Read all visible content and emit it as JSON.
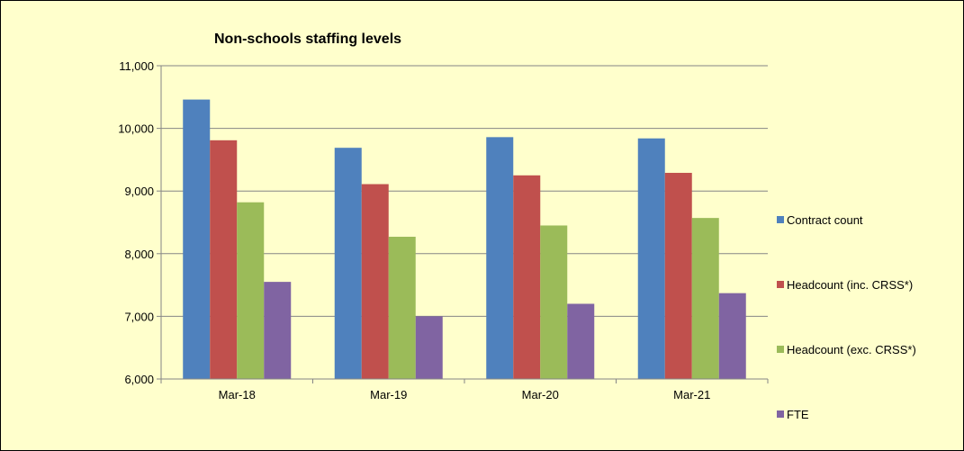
{
  "chart_data": {
    "type": "bar",
    "title": "Non-schools staffing levels",
    "xlabel": "",
    "ylabel": "",
    "categories": [
      "Mar-18",
      "Mar-19",
      "Mar-20",
      "Mar-21"
    ],
    "ylim": [
      6000,
      11000
    ],
    "yticks": [
      6000,
      7000,
      8000,
      9000,
      10000,
      11000
    ],
    "ytick_labels": [
      "6,000",
      "7,000",
      "8,000",
      "9,000",
      "10,000",
      "11,000"
    ],
    "grid": true,
    "legend_position": "right",
    "plot_background": "#ffffcc",
    "chart_background": "#ffffcc",
    "series": [
      {
        "name": "Contract count",
        "color": "#4f81bd",
        "values": [
          10460,
          9690,
          9860,
          9840
        ]
      },
      {
        "name": "Headcount (inc. CRSS*)",
        "color": "#c0504d",
        "values": [
          9810,
          9110,
          9250,
          9290
        ]
      },
      {
        "name": "Headcount (exc. CRSS*)",
        "color": "#9bbb59",
        "values": [
          8820,
          8270,
          8450,
          8570
        ]
      },
      {
        "name": "FTE",
        "color": "#8064a2",
        "values": [
          7550,
          7000,
          7200,
          7370
        ]
      }
    ]
  }
}
